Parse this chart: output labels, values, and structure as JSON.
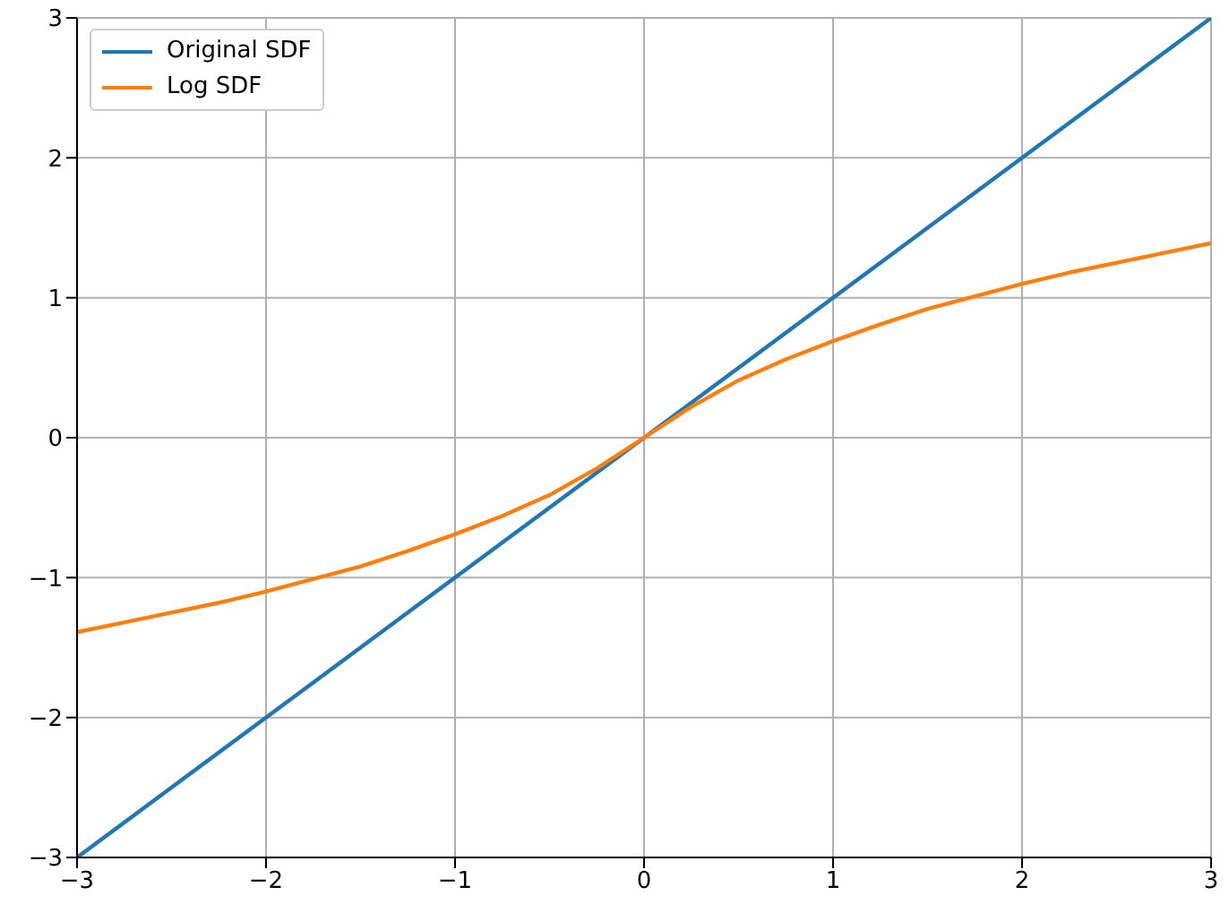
{
  "chart_data": {
    "type": "line",
    "xlim": [
      -3,
      3
    ],
    "ylim": [
      -3,
      3
    ],
    "xticks": [
      {
        "value": -3,
        "label": "−3"
      },
      {
        "value": -2,
        "label": "−2"
      },
      {
        "value": -1,
        "label": "−1"
      },
      0,
      1,
      2,
      3
    ],
    "yticks": [
      {
        "value": -3,
        "label": "−3"
      },
      {
        "value": -2,
        "label": "−2"
      },
      {
        "value": -1,
        "label": "−1"
      },
      0,
      1,
      2,
      3
    ],
    "grid": true,
    "legend": "top left",
    "marker": "none",
    "line_style": "solid",
    "series": [
      {
        "name": "Original SDF",
        "color": "#1f77b4",
        "x": [
          -3,
          3
        ],
        "values": [
          -3,
          3
        ]
      },
      {
        "name": "Log SDF",
        "color": "#ff7f0e",
        "x": [
          -3,
          -2.75,
          -2.5,
          -2.25,
          -2,
          -1.75,
          -1.5,
          -1.25,
          -1,
          -0.75,
          -0.5,
          -0.25,
          0,
          0.25,
          0.5,
          0.75,
          1,
          1.25,
          1.5,
          1.75,
          2,
          2.25,
          2.5,
          2.75,
          3
        ],
        "values": [
          -1.39,
          -1.32,
          -1.25,
          -1.18,
          -1.1,
          -1.01,
          -0.92,
          -0.81,
          -0.69,
          -0.56,
          -0.41,
          -0.22,
          0,
          0.22,
          0.41,
          0.56,
          0.69,
          0.81,
          0.92,
          1.01,
          1.1,
          1.18,
          1.25,
          1.32,
          1.39
        ]
      }
    ]
  }
}
